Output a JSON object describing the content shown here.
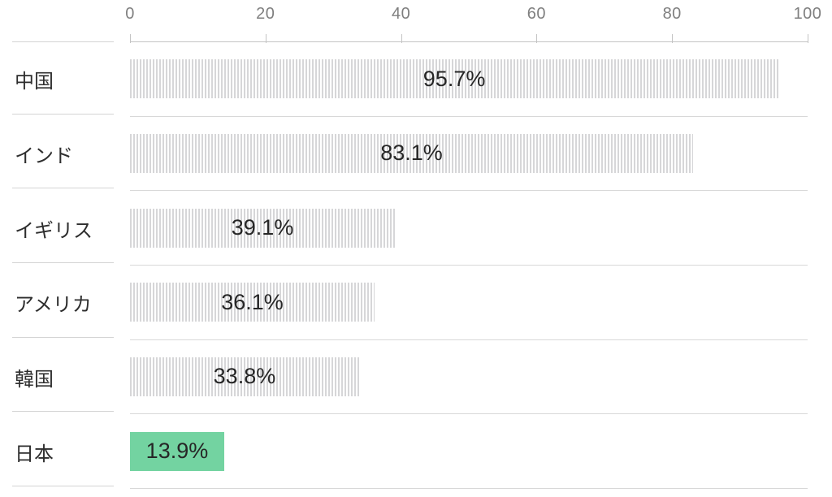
{
  "chart_data": {
    "type": "bar",
    "orientation": "horizontal",
    "title": "",
    "xlabel": "",
    "ylabel": "",
    "xlim": [
      0,
      100
    ],
    "grid": false,
    "legend_position": "none",
    "categories": [
      "中国",
      "インド",
      "イギリス",
      "アメリカ",
      "韓国",
      "日本"
    ],
    "values": [
      95.7,
      83.1,
      39.1,
      36.1,
      33.8,
      13.9
    ],
    "value_labels": [
      "95.7%",
      "83.1%",
      "39.1%",
      "36.1%",
      "33.8%",
      "13.9%"
    ],
    "x_ticks": [
      0,
      20,
      40,
      60,
      80,
      100
    ],
    "x_tick_labels": [
      "0",
      "20",
      "40",
      "60",
      "80",
      "100"
    ],
    "unit": "%",
    "highlight_index": 5,
    "colors": {
      "bar_stripe": "#d6d6d8",
      "bar_stripe_background": "#ffffff",
      "highlight_bar": "#73d3a1",
      "value_text": "#262626",
      "category_text": "#2e2e2e",
      "axis_text": "#7f7f7f",
      "axis_line": "#c4c4c4",
      "row_divider": "#d8d8d8"
    }
  }
}
